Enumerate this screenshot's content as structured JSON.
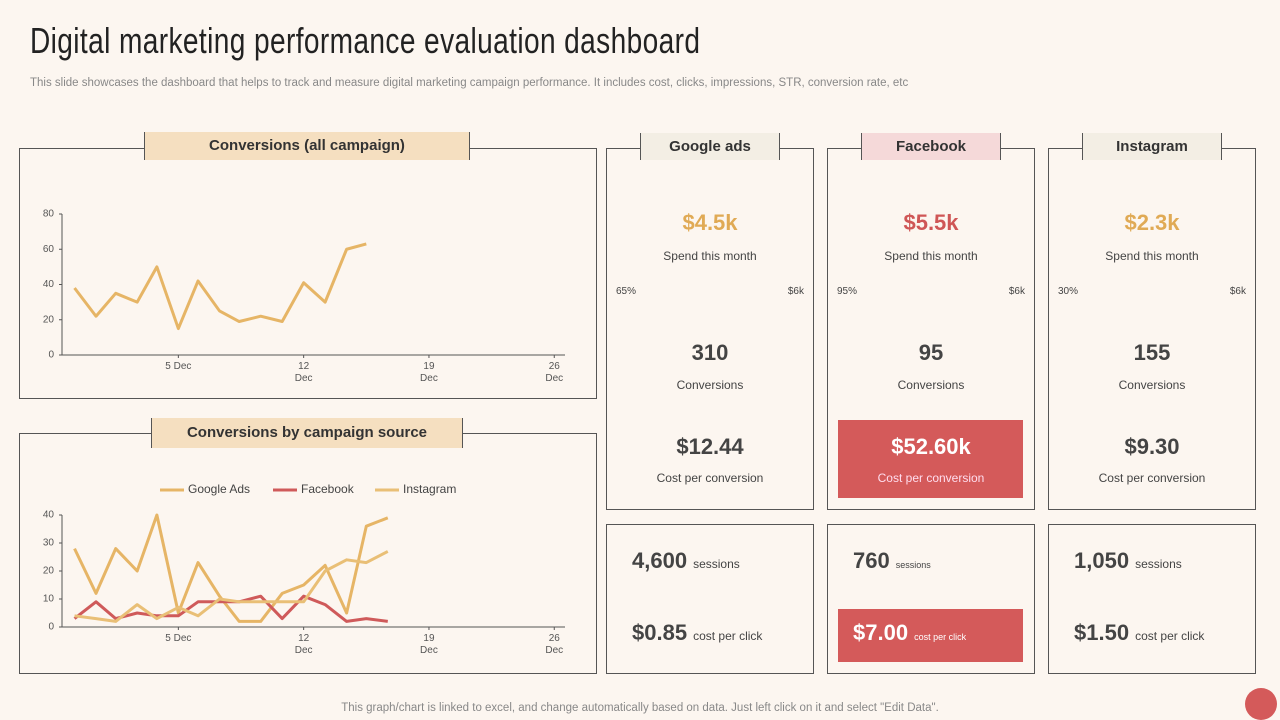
{
  "title": "Digital marketing performance evaluation dashboard",
  "subtitle": "This slide showcases the dashboard that helps to track and measure digital marketing campaign performance. It includes cost, clicks, impressions, STR, conversion rate, etc",
  "footer": "This graph/chart is linked to excel,  and change automatically based on data. Just left click on it and select \"Edit Data\".",
  "chart_data": [
    {
      "type": "line",
      "title": "Conversions (all campaign)",
      "x": [
        -0.8,
        0.4,
        1.5,
        2.7,
        3.8,
        5.0,
        6.1,
        7.3,
        8.4,
        9.6,
        10.8,
        12.0,
        13.2,
        14.4,
        15.5
      ],
      "values": [
        38,
        22,
        35,
        30,
        50,
        15,
        42,
        25,
        19,
        22,
        19,
        41,
        30,
        60,
        63
      ],
      "color": "#e6b566",
      "xlim": [
        -1.5,
        26.6
      ],
      "xticks": [
        {
          "value": 5,
          "label": "5 Dec"
        },
        {
          "value": 12,
          "label": "12 Dec"
        },
        {
          "value": 19,
          "label": "19 Dec"
        },
        {
          "value": 26,
          "label": "26 Dec"
        }
      ],
      "ylim": [
        0,
        80
      ],
      "yticks": [
        0,
        20,
        40,
        60,
        80
      ]
    },
    {
      "type": "line",
      "title": "Conversions by campaign source",
      "x": [
        -0.8,
        0.4,
        1.5,
        2.7,
        3.8,
        5.0,
        6.1,
        7.3,
        8.4,
        9.6,
        10.8,
        12.0,
        13.2,
        14.4,
        15.5,
        16.7
      ],
      "series": [
        {
          "name": "Google Ads",
          "color": "#e6b566",
          "values": [
            28,
            12,
            28,
            20,
            40,
            5,
            23,
            11,
            2,
            2,
            12,
            15,
            22,
            5,
            36,
            39
          ]
        },
        {
          "name": "Facebook",
          "color": "#cf5a5a",
          "values": [
            3,
            9,
            3,
            5,
            4,
            4,
            9,
            9,
            9,
            11,
            3,
            11,
            8,
            2,
            3,
            2
          ]
        },
        {
          "name": "Instagram",
          "color": "#e9bf76",
          "values": [
            4,
            3,
            2,
            8,
            3,
            7,
            4,
            10,
            9,
            9,
            9,
            9,
            20,
            24,
            23,
            27
          ]
        }
      ],
      "xlim": [
        -1.5,
        26.6
      ],
      "xticks": [
        {
          "value": 5,
          "label": "5 Dec"
        },
        {
          "value": 12,
          "label": "12 Dec"
        },
        {
          "value": 19,
          "label": "19 Dec"
        },
        {
          "value": 26,
          "label": "26 Dec"
        }
      ],
      "ylim": [
        0,
        40
      ],
      "yticks": [
        0,
        10,
        20,
        30,
        40
      ],
      "legend": "top"
    }
  ],
  "platforms": [
    {
      "name": "Google ads",
      "header_color": "#f3eee4",
      "accent": "#e0aa55",
      "spend": "$4.5k",
      "spend_label": "Spend this month",
      "progress": {
        "value": 65,
        "label": "65%"
      },
      "progress_max": "$6k",
      "conversions": "310",
      "conversions_label": "Conversions",
      "cost": "$12.44",
      "cost_label": "Cost per conversion",
      "sessions": "4,600",
      "sessions_label": "sessions",
      "cpc": "$0.85",
      "cpc_label": "cost per click",
      "highlight": false
    },
    {
      "name": "Facebook",
      "header_color": "#f5d9d9",
      "accent": "#cf5656",
      "spend": "$5.5k",
      "spend_label": "Spend this month",
      "progress": {
        "value": 95,
        "label": "95%"
      },
      "progress_max": "$6k",
      "conversions": "95",
      "conversions_label": "Conversions",
      "cost": "$52.60k",
      "cost_label": "Cost per conversion",
      "sessions": "760",
      "sessions_label": "sessions",
      "cpc": "$7.00",
      "cpc_label": "cost per click",
      "highlight": true
    },
    {
      "name": "Instagram",
      "header_color": "#f3eee4",
      "accent": "#e0aa55",
      "spend": "$2.3k",
      "spend_label": "Spend this month",
      "progress": {
        "value": 30,
        "label": "30%"
      },
      "progress_max": "$6k",
      "conversions": "155",
      "conversions_label": "Conversions",
      "cost": "$9.30",
      "cost_label": "Cost per conversion",
      "sessions": "1,050",
      "sessions_label": "sessions",
      "cpc": "$1.50",
      "cpc_label": "cost per click",
      "highlight": false
    }
  ]
}
